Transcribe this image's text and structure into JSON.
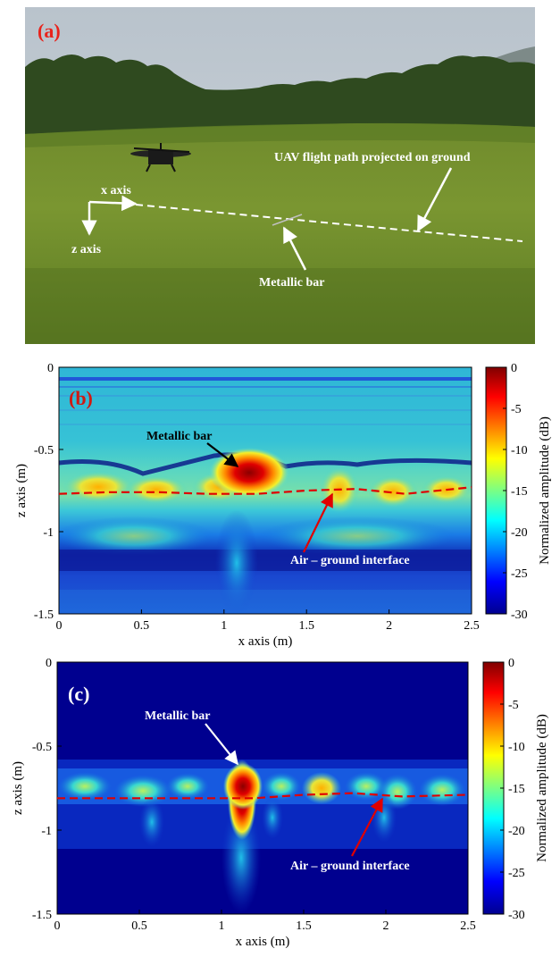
{
  "photo": {
    "panel_label": "(a)",
    "annotations": {
      "x_axis": "x axis",
      "z_axis": "z axis",
      "flight_path": "UAV flight path projected on ground",
      "metallic_bar": "Metallic bar"
    }
  },
  "colorbar": {
    "label": "Normalized amplitude (dB)",
    "ticks": [
      "0",
      "-5",
      "-10",
      "-15",
      "-20",
      "-25",
      "-30"
    ]
  },
  "chart_data": [
    {
      "type": "heatmap",
      "panel_label": "(b)",
      "xlabel": "x axis (m)",
      "ylabel": "z axis (m)",
      "xlim": [
        0,
        2.5
      ],
      "ylim": [
        -1.5,
        0
      ],
      "xticks": [
        "0",
        "0.5",
        "1",
        "1.5",
        "2",
        "2.5"
      ],
      "yticks": [
        "0",
        "-0.5",
        "-1",
        "-1.5"
      ],
      "colorbar_range_db": [
        -30,
        0
      ],
      "annotations": {
        "target": "Metallic bar",
        "interface": "Air – ground interface"
      },
      "interface_line": {
        "x": [
          0,
          0.3,
          0.6,
          0.9,
          1.2,
          1.5,
          1.8,
          2.1,
          2.5
        ],
        "z": [
          -0.77,
          -0.76,
          -0.76,
          -0.77,
          -0.77,
          -0.75,
          -0.74,
          -0.77,
          -0.73
        ]
      },
      "target": {
        "x": 1.17,
        "z": -0.67
      }
    },
    {
      "type": "heatmap",
      "panel_label": "(c)",
      "xlabel": "x axis (m)",
      "ylabel": "z axis (m)",
      "xlim": [
        0,
        2.5
      ],
      "ylim": [
        -1.5,
        0
      ],
      "xticks": [
        "0",
        "0.5",
        "1",
        "1.5",
        "2",
        "2.5"
      ],
      "yticks": [
        "0",
        "-0.5",
        "-1",
        "-1.5"
      ],
      "colorbar_range_db": [
        -30,
        0
      ],
      "annotations": {
        "target": "Metallic bar",
        "interface": "Air – ground interface"
      },
      "interface_line": {
        "x": [
          0,
          0.3,
          0.6,
          0.9,
          1.2,
          1.5,
          1.8,
          2.1,
          2.5
        ],
        "z": [
          -0.81,
          -0.81,
          -0.81,
          -0.81,
          -0.81,
          -0.79,
          -0.78,
          -0.8,
          -0.79
        ]
      },
      "target": {
        "x": 1.13,
        "z": -0.78
      }
    }
  ]
}
